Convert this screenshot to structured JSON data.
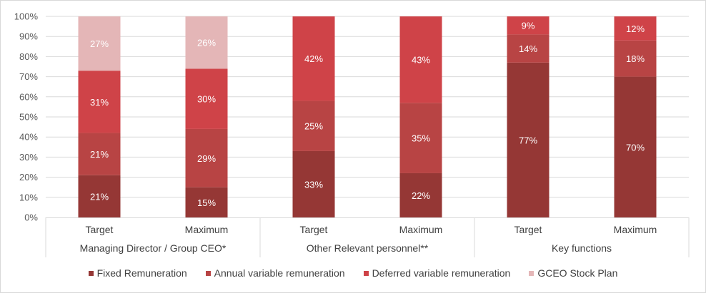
{
  "chart_data": {
    "type": "bar",
    "stacked": true,
    "groups": [
      {
        "label": "Managing Director / Group CEO*",
        "categories": [
          "Target",
          "Maximum"
        ]
      },
      {
        "label": "Other Relevant personnel**",
        "categories": [
          "Target",
          "Maximum"
        ]
      },
      {
        "label": "Key functions",
        "categories": [
          "Target",
          "Maximum"
        ]
      }
    ],
    "series": [
      {
        "name": "Fixed Remuneration",
        "color": "#953735",
        "values": [
          21,
          15,
          33,
          22,
          77,
          70
        ],
        "labels": [
          "21%",
          "15%",
          "33%",
          "22%",
          "77%",
          "70%"
        ]
      },
      {
        "name": "Annual variable remuneration",
        "color": "#b84444",
        "values": [
          21,
          29,
          25,
          35,
          14,
          18
        ],
        "labels": [
          "21%",
          "29%",
          "25%",
          "35%",
          "14%",
          "18%"
        ]
      },
      {
        "name": "Deferred variable remuneration",
        "color": "#cf4348",
        "values": [
          31,
          30,
          42,
          43,
          9,
          12
        ],
        "labels": [
          "31%",
          "30%",
          "42%",
          "43%",
          "9%",
          "12%"
        ]
      },
      {
        "name": "GCEO Stock Plan",
        "color": "#e4b6b7",
        "values": [
          27,
          26,
          0,
          0,
          0,
          0
        ],
        "labels": [
          "27%",
          "26%",
          "",
          "",
          "",
          ""
        ]
      }
    ],
    "ylim": [
      0,
      100
    ],
    "yticks": [
      "0%",
      "10%",
      "20%",
      "30%",
      "40%",
      "50%",
      "60%",
      "70%",
      "80%",
      "90%",
      "100%"
    ],
    "grid": true,
    "legend_position": "bottom"
  }
}
